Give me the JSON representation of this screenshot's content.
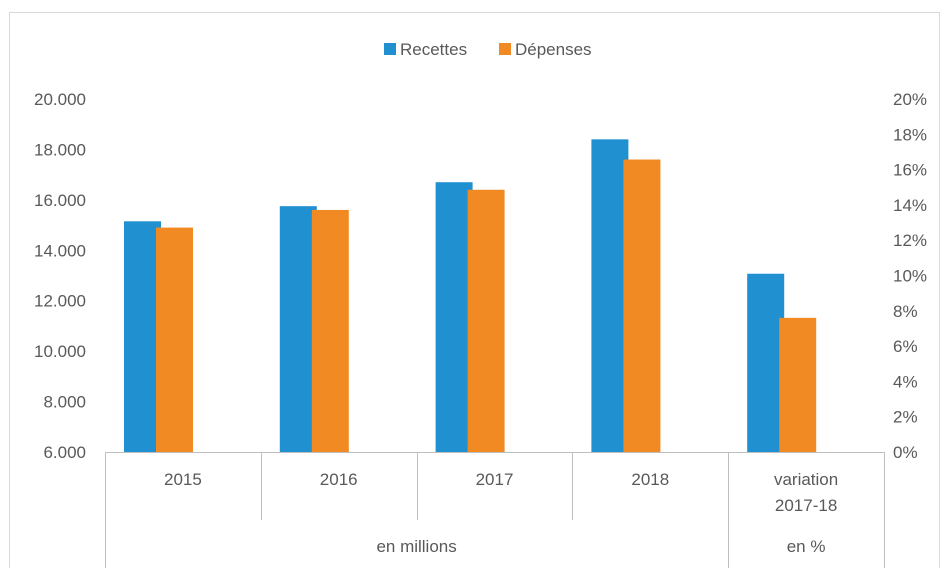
{
  "chart_data": {
    "type": "bar",
    "legend_position": "top",
    "grid": false,
    "colors": {
      "Recettes": "#2190D0",
      "Dépenses": "#F18A23"
    },
    "legend": [
      "Recettes",
      "Dépenses"
    ],
    "groups": [
      {
        "label": "2015",
        "label_lines": [
          "2015"
        ],
        "axis": "left",
        "recettes": 15150,
        "depenses": 14900
      },
      {
        "label": "2016",
        "label_lines": [
          "2016"
        ],
        "axis": "left",
        "recettes": 15750,
        "depenses": 15600
      },
      {
        "label": "2017",
        "label_lines": [
          "2017"
        ],
        "axis": "left",
        "recettes": 16700,
        "depenses": 16400
      },
      {
        "label": "2018",
        "label_lines": [
          "2018"
        ],
        "axis": "left",
        "recettes": 18400,
        "depenses": 17600
      },
      {
        "label": "variation 2017-18",
        "label_lines": [
          "variation",
          "2017-18"
        ],
        "axis": "right",
        "recettes": 10.1,
        "depenses": 7.6
      }
    ],
    "left_axis": {
      "ylim": [
        6000,
        20000
      ],
      "ticks": [
        6000,
        8000,
        10000,
        12000,
        14000,
        16000,
        18000,
        20000
      ],
      "tick_labels": [
        "6.000",
        "8.000",
        "10.000",
        "12.000",
        "14.000",
        "16.000",
        "18.000",
        "20.000"
      ]
    },
    "right_axis": {
      "ylim": [
        0,
        20
      ],
      "ticks": [
        0,
        2,
        4,
        6,
        8,
        10,
        12,
        14,
        16,
        18,
        20
      ],
      "tick_labels": [
        "0%",
        "2%",
        "4%",
        "6%",
        "8%",
        "10%",
        "12%",
        "14%",
        "16%",
        "18%",
        "20%"
      ]
    },
    "group_headers": [
      {
        "label": "en millions",
        "span": 4
      },
      {
        "label": "en %",
        "span": 1
      }
    ]
  }
}
